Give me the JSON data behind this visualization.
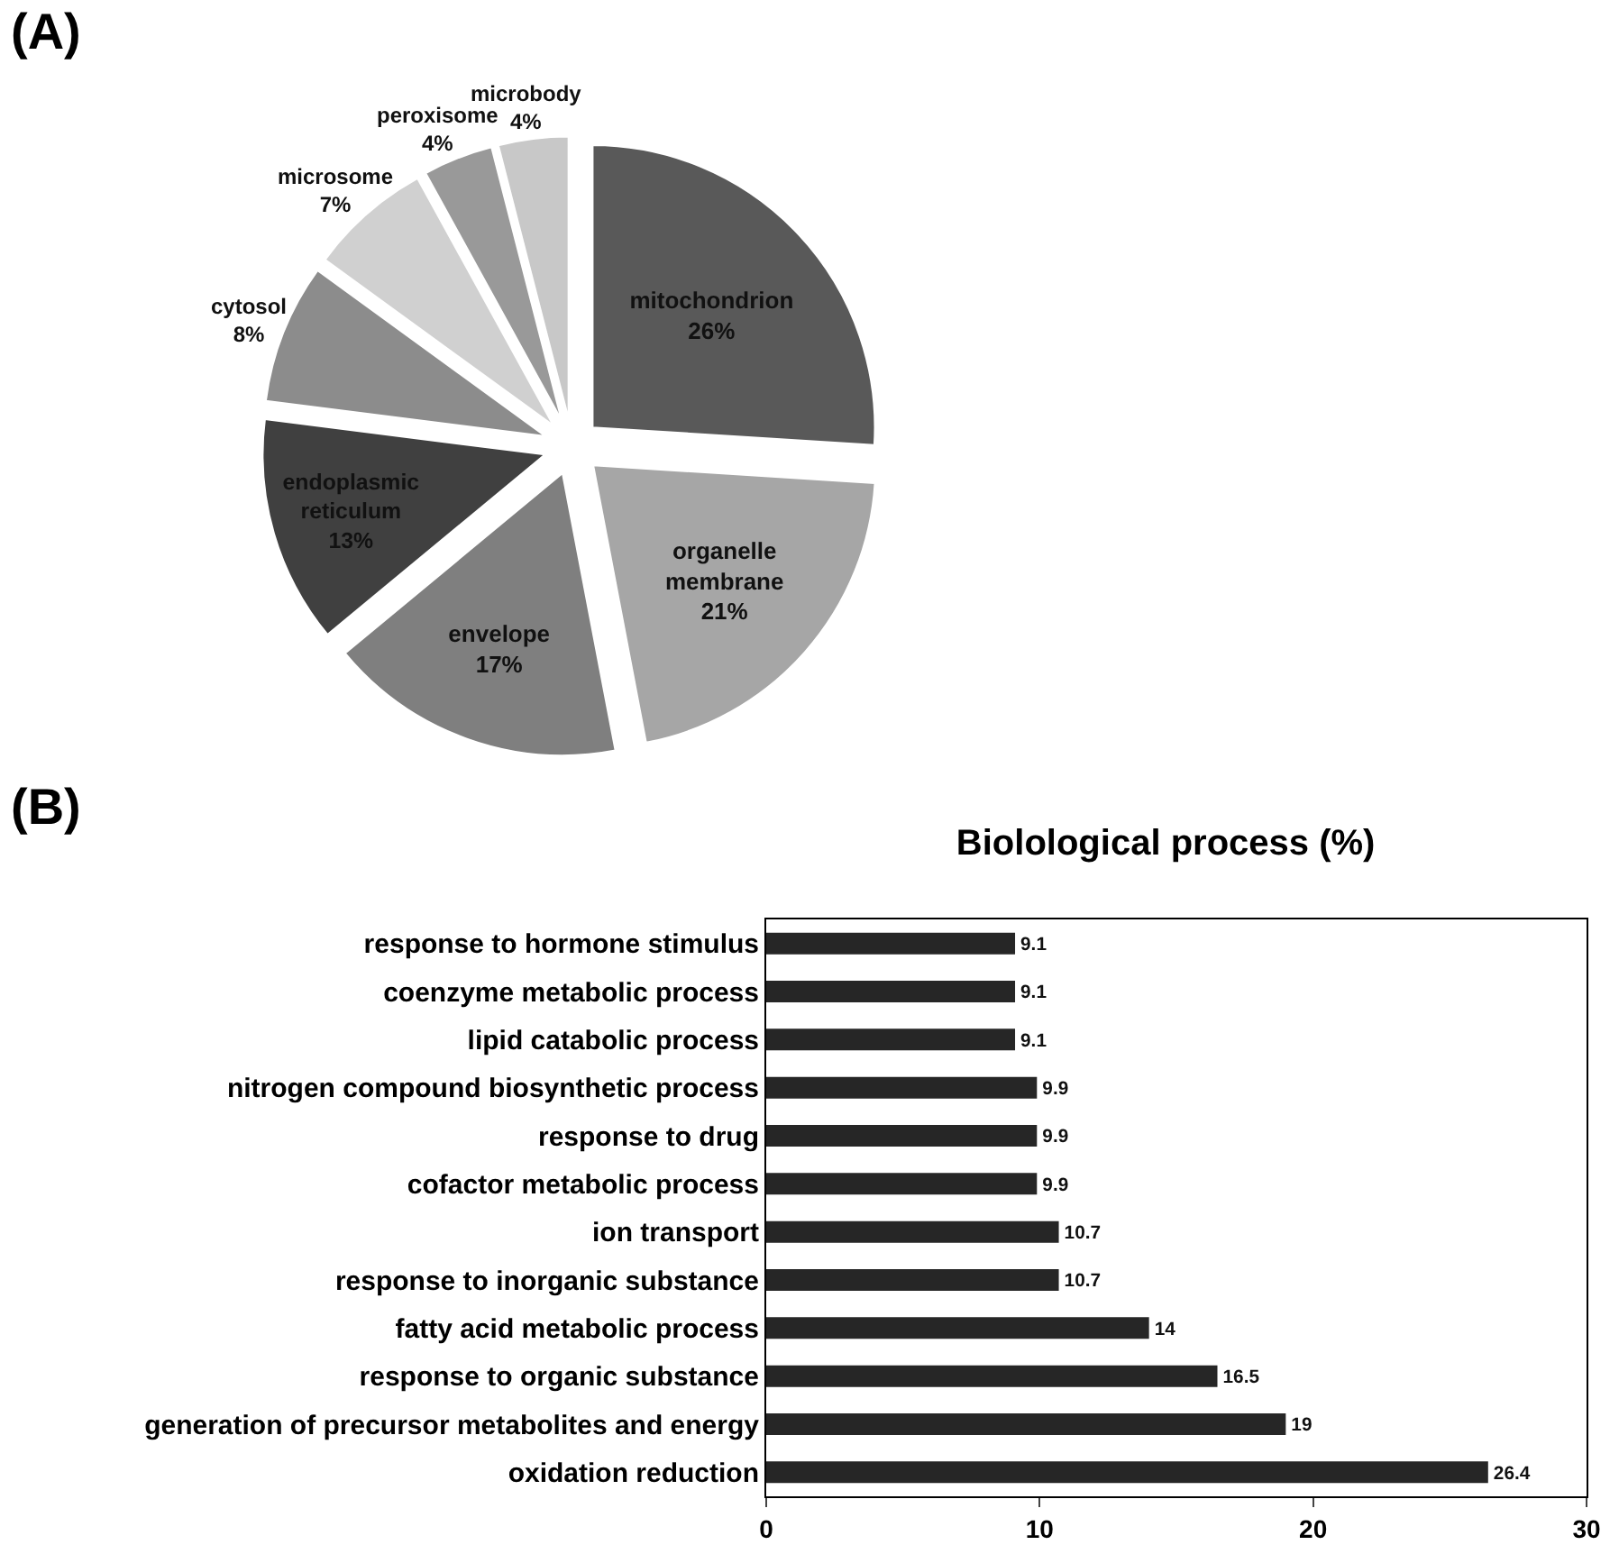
{
  "chart_data": [
    {
      "type": "pie",
      "annotations": [
        "(A)"
      ],
      "categories": [
        "mitochondrion",
        "organelle membrane",
        "envelope",
        "endoplasmic reticulum",
        "cytosol",
        "microsome",
        "peroxisome",
        "microbody"
      ],
      "values": [
        26,
        21,
        17,
        13,
        8,
        7,
        4,
        4
      ],
      "value_labels": [
        "26%",
        "21%",
        "17%",
        "13%",
        "8%",
        "7%",
        "4%",
        "4%"
      ],
      "colors": [
        "#595959",
        "#a6a6a6",
        "#7f7f7f",
        "#404040",
        "#8c8c8c",
        "#d0d0d0",
        "#999999",
        "#c8c8c8"
      ],
      "legend": false
    },
    {
      "type": "bar",
      "orientation": "horizontal",
      "title": "Biolological process (%)",
      "annotations": [
        "(B)"
      ],
      "categories": [
        "response to hormone stimulus",
        "coenzyme metabolic process",
        "lipid catabolic process",
        "nitrogen compound biosynthetic process",
        "response to drug",
        "cofactor metabolic process",
        "ion transport",
        "response to inorganic substance",
        "fatty acid metabolic process",
        "response to organic substance",
        "generation of precursor metabolites and energy",
        "oxidation reduction"
      ],
      "values": [
        9.1,
        9.1,
        9.1,
        9.9,
        9.9,
        9.9,
        10.7,
        10.7,
        14,
        16.5,
        19,
        26.4
      ],
      "color": "#262626",
      "xlim": [
        0,
        30
      ],
      "xticks": [
        0,
        10,
        20,
        30
      ],
      "data_labels": true,
      "grid": false,
      "legend": false
    }
  ]
}
